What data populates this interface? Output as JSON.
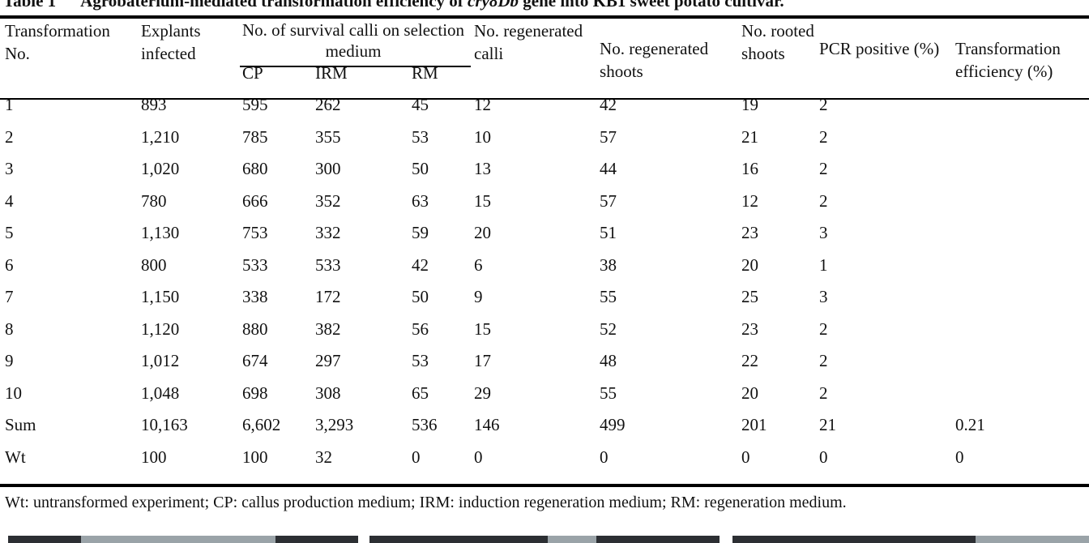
{
  "caption": {
    "label": "Table 1",
    "text_before": "Agrobaterium-mediated transformation efficiency of ",
    "gene": "cry8Db",
    "text_after": " gene into KB1 sweet potato cultivar."
  },
  "headers": {
    "transformation_no": "Transformation No.",
    "explants": "Explants infected",
    "survival_group": "No. of survival calli on selection medium",
    "cp": "CP",
    "irm": "IRM",
    "rm": "RM",
    "regenerated_calli": "No. regenerated calli",
    "regenerated_shoots": "No. regenerated shoots",
    "rooted_shoots": "No. rooted shoots",
    "pcr_positive": "PCR positive (%)",
    "efficiency": "Transformation efficiency (%)"
  },
  "rows": [
    [
      "1",
      "893",
      "595",
      "262",
      "45",
      "12",
      "42",
      "19",
      "2",
      ""
    ],
    [
      "2",
      "1,210",
      "785",
      "355",
      "53",
      "10",
      "57",
      "21",
      "2",
      ""
    ],
    [
      "3",
      "1,020",
      "680",
      "300",
      "50",
      "13",
      "44",
      "16",
      "2",
      ""
    ],
    [
      "4",
      "780",
      "666",
      "352",
      "63",
      "15",
      "57",
      "12",
      "2",
      ""
    ],
    [
      "5",
      "1,130",
      "753",
      "332",
      "59",
      "20",
      "51",
      "23",
      "3",
      ""
    ],
    [
      "6",
      "800",
      "533",
      "533",
      "42",
      "6",
      "38",
      "20",
      "1",
      ""
    ],
    [
      "7",
      "1,150",
      "338",
      "172",
      "50",
      "9",
      "55",
      "25",
      "3",
      ""
    ],
    [
      "8",
      "1,120",
      "880",
      "382",
      "56",
      "15",
      "52",
      "23",
      "2",
      ""
    ],
    [
      "9",
      "1,012",
      "674",
      "297",
      "53",
      "17",
      "48",
      "22",
      "2",
      ""
    ],
    [
      "10",
      "1,048",
      "698",
      "308",
      "65",
      "29",
      "55",
      "20",
      "2",
      ""
    ],
    [
      "Sum",
      "10,163",
      "6,602",
      "3,293",
      "536",
      "146",
      "499",
      "201",
      "21",
      "0.21"
    ],
    [
      "Wt",
      "100",
      "100",
      "32",
      "0",
      "0",
      "0",
      "0",
      "0",
      "0"
    ]
  ],
  "note": "Wt: untransformed experiment; CP: callus production medium; IRM: induction regeneration medium; RM: regeneration medium."
}
